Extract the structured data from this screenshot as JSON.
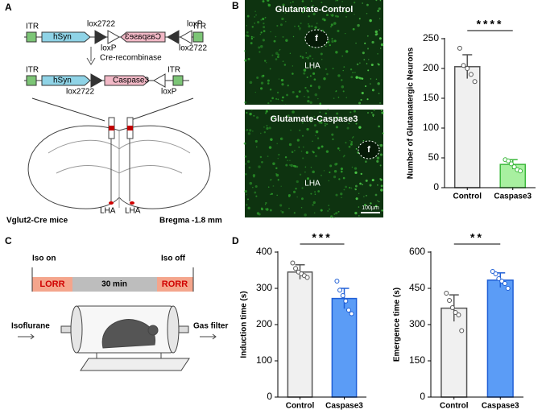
{
  "panel_a": {
    "label": "A",
    "itr": "ITR",
    "hsyn": "hSyn",
    "lox2722": "lox2722",
    "loxp": "loxP",
    "caspase3": "Caspase3",
    "cre": "Cre-recombinase",
    "mouse": "Vglut2-Cre mice",
    "bregma": "Bregma -1.8 mm",
    "lha": "LHA"
  },
  "panel_b": {
    "label": "B",
    "images": [
      {
        "title": "Glutamate-Control",
        "fornix": "f",
        "region": "LHA"
      },
      {
        "title": "Glutamate-Caspase3",
        "fornix": "f",
        "region": "LHA",
        "scale_bar": "100μm"
      }
    ]
  },
  "panel_c": {
    "label": "C",
    "iso_on": "Iso on",
    "iso_off": "Iso off",
    "lorr": "LORR",
    "duration": "30 min",
    "rorr": "RORR",
    "inlet": "Isoflurane",
    "outlet": "Gas filter"
  },
  "panel_d": {
    "label": "D"
  },
  "chart_data": [
    {
      "type": "bar",
      "ylabel": "Number of Glutamatergic Neurons",
      "categories": [
        "Control",
        "Caspase3"
      ],
      "values": [
        203,
        39
      ],
      "errors": [
        20,
        8
      ],
      "points": [
        [
          234,
          205,
          200,
          190,
          178
        ],
        [
          47,
          45,
          40,
          35,
          30,
          28
        ]
      ],
      "colors": [
        "#f0f0f0",
        "#a8f0a0"
      ],
      "edge_colors": [
        "#555555",
        "#3cb83c"
      ],
      "ylim": [
        0,
        250
      ],
      "yticks": [
        0,
        50,
        100,
        150,
        200,
        250
      ],
      "significance": "****"
    },
    {
      "type": "bar",
      "ylabel": "Induction time (s)",
      "categories": [
        "Control",
        "Caspase3"
      ],
      "values": [
        345,
        272
      ],
      "errors": [
        20,
        28
      ],
      "points": [
        [
          370,
          355,
          345,
          340,
          335,
          330
        ],
        [
          320,
          295,
          280,
          265,
          240,
          230
        ]
      ],
      "colors": [
        "#f0f0f0",
        "#5b9cf6"
      ],
      "edge_colors": [
        "#555555",
        "#1f5fd6"
      ],
      "ylim": [
        0,
        400
      ],
      "yticks": [
        0,
        100,
        200,
        300,
        400
      ],
      "significance": "***"
    },
    {
      "type": "bar",
      "ylabel": "Emergence time (s)",
      "categories": [
        "Control",
        "Caspase3"
      ],
      "values": [
        368,
        484
      ],
      "errors": [
        55,
        30
      ],
      "points": [
        [
          430,
          400,
          370,
          350,
          340,
          275
        ],
        [
          520,
          510,
          490,
          480,
          470,
          450
        ]
      ],
      "colors": [
        "#f0f0f0",
        "#5b9cf6"
      ],
      "edge_colors": [
        "#555555",
        "#1f5fd6"
      ],
      "ylim": [
        0,
        600
      ],
      "yticks": [
        0,
        150,
        300,
        450,
        600
      ],
      "significance": "**"
    }
  ]
}
